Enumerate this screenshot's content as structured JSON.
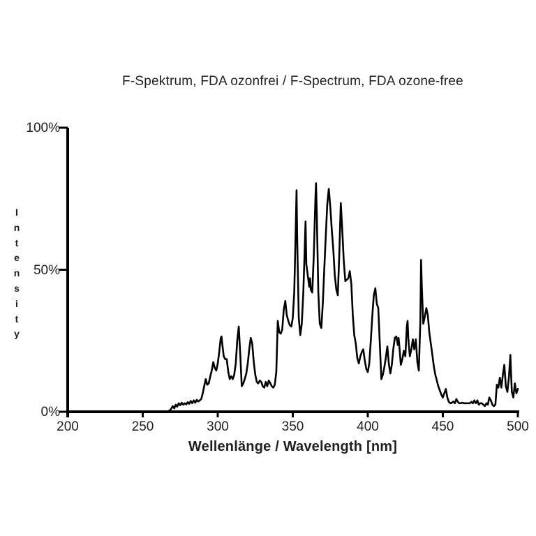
{
  "page": {
    "background": "#ffffff"
  },
  "chart_data": {
    "type": "line",
    "title": "F-Spektrum, FDA ozonfrei / F-Spectrum, FDA ozone-free",
    "xlabel": "Wellenlänge / Wavelength [nm]",
    "ylabel": "Intensity",
    "xlim": [
      200,
      500
    ],
    "ylim": [
      0,
      100
    ],
    "grid": false,
    "legend_position": "none",
    "line_color": "#000000",
    "axis_color": "#000000",
    "x_ticks": [
      {
        "value": 200,
        "label": "200"
      },
      {
        "value": 250,
        "label": "250"
      },
      {
        "value": 300,
        "label": "300"
      },
      {
        "value": 350,
        "label": "350"
      },
      {
        "value": 400,
        "label": "400"
      },
      {
        "value": 450,
        "label": "450"
      },
      {
        "value": 500,
        "label": "500"
      }
    ],
    "y_ticks": [
      {
        "value": 0,
        "label": "0%"
      },
      {
        "value": 50,
        "label": "50%"
      },
      {
        "value": 100,
        "label": "100%"
      }
    ],
    "series": [
      {
        "name": "F-Spectrum, FDA ozone-free",
        "points": [
          [
            200,
            0
          ],
          [
            210,
            0
          ],
          [
            220,
            0
          ],
          [
            230,
            0
          ],
          [
            240,
            0
          ],
          [
            250,
            0
          ],
          [
            260,
            0
          ],
          [
            266,
            0
          ],
          [
            268,
            0.5
          ],
          [
            269,
            1
          ],
          [
            270,
            2
          ],
          [
            271,
            1.2
          ],
          [
            272,
            2.5
          ],
          [
            273,
            1.8
          ],
          [
            274,
            3
          ],
          [
            275,
            2.3
          ],
          [
            276,
            3.2
          ],
          [
            277,
            2.5
          ],
          [
            278,
            3
          ],
          [
            279,
            2.6
          ],
          [
            280,
            3.4
          ],
          [
            281,
            2.8
          ],
          [
            282,
            3.8
          ],
          [
            283,
            3
          ],
          [
            284,
            4
          ],
          [
            285,
            3.2
          ],
          [
            286,
            4.2
          ],
          [
            287,
            3.6
          ],
          [
            288,
            4
          ],
          [
            289,
            4.5
          ],
          [
            290,
            6.5
          ],
          [
            291,
            9
          ],
          [
            292,
            11.5
          ],
          [
            293,
            9.5
          ],
          [
            294,
            10
          ],
          [
            295,
            12.5
          ],
          [
            296,
            14.5
          ],
          [
            297,
            17.5
          ],
          [
            298,
            15.5
          ],
          [
            299,
            14.5
          ],
          [
            300,
            17
          ],
          [
            301,
            21
          ],
          [
            302,
            26
          ],
          [
            302.5,
            26.5
          ],
          [
            303,
            24
          ],
          [
            304,
            19.5
          ],
          [
            305,
            18.5
          ],
          [
            306,
            18.5
          ],
          [
            307,
            14
          ],
          [
            308,
            11.5
          ],
          [
            309,
            12.5
          ],
          [
            310,
            11.5
          ],
          [
            311,
            13
          ],
          [
            312,
            17
          ],
          [
            313,
            25
          ],
          [
            314,
            30
          ],
          [
            315,
            20
          ],
          [
            316,
            9
          ],
          [
            317,
            10
          ],
          [
            318,
            11.5
          ],
          [
            319,
            13.5
          ],
          [
            320,
            17
          ],
          [
            321,
            22
          ],
          [
            322,
            26
          ],
          [
            323,
            24
          ],
          [
            324,
            17.5
          ],
          [
            325,
            13
          ],
          [
            326,
            10.5
          ],
          [
            327,
            10
          ],
          [
            328,
            11
          ],
          [
            329,
            10.5
          ],
          [
            330,
            9
          ],
          [
            331,
            8.5
          ],
          [
            332,
            10.5
          ],
          [
            333,
            9
          ],
          [
            334,
            11
          ],
          [
            335,
            10
          ],
          [
            336,
            9
          ],
          [
            337,
            8.5
          ],
          [
            338,
            9.5
          ],
          [
            339,
            14
          ],
          [
            340,
            32
          ],
          [
            341,
            28
          ],
          [
            342,
            27.5
          ],
          [
            343,
            29
          ],
          [
            344,
            36
          ],
          [
            345,
            39
          ],
          [
            346,
            34
          ],
          [
            347,
            32
          ],
          [
            348,
            30.5
          ],
          [
            349,
            30
          ],
          [
            350,
            33
          ],
          [
            351,
            42
          ],
          [
            352,
            65
          ],
          [
            352.5,
            78
          ],
          [
            353,
            60
          ],
          [
            354,
            33
          ],
          [
            355,
            27
          ],
          [
            356,
            31
          ],
          [
            357,
            42
          ],
          [
            358,
            58
          ],
          [
            358.5,
            67
          ],
          [
            359,
            52
          ],
          [
            360,
            48
          ],
          [
            361,
            44
          ],
          [
            361.5,
            47
          ],
          [
            362,
            43
          ],
          [
            363,
            42
          ],
          [
            364,
            55
          ],
          [
            365,
            74
          ],
          [
            365.5,
            80.5
          ],
          [
            366,
            70
          ],
          [
            367,
            42
          ],
          [
            368,
            31
          ],
          [
            369,
            29.5
          ],
          [
            370,
            38
          ],
          [
            371,
            50
          ],
          [
            372,
            62
          ],
          [
            373,
            73
          ],
          [
            374,
            78.5
          ],
          [
            375,
            72
          ],
          [
            376,
            64
          ],
          [
            377,
            57
          ],
          [
            378,
            48
          ],
          [
            379,
            43
          ],
          [
            380,
            41
          ],
          [
            381,
            55
          ],
          [
            382,
            73.5
          ],
          [
            383,
            64
          ],
          [
            384,
            53
          ],
          [
            385,
            46
          ],
          [
            386,
            46.5
          ],
          [
            387,
            47
          ],
          [
            388,
            49.5
          ],
          [
            389,
            45
          ],
          [
            390,
            34
          ],
          [
            391,
            27
          ],
          [
            392,
            24
          ],
          [
            393,
            19
          ],
          [
            394,
            17
          ],
          [
            395,
            19.5
          ],
          [
            396,
            21
          ],
          [
            397,
            22
          ],
          [
            398,
            18
          ],
          [
            399,
            15
          ],
          [
            400,
            14
          ],
          [
            401,
            17
          ],
          [
            402,
            25
          ],
          [
            403,
            34
          ],
          [
            404,
            41
          ],
          [
            405,
            43.5
          ],
          [
            406,
            38
          ],
          [
            407,
            36.5
          ],
          [
            408,
            24
          ],
          [
            409,
            11.5
          ],
          [
            410,
            13
          ],
          [
            411,
            15.5
          ],
          [
            412,
            19
          ],
          [
            413,
            23
          ],
          [
            414,
            17
          ],
          [
            415,
            13.5
          ],
          [
            416,
            16.5
          ],
          [
            417,
            22
          ],
          [
            418,
            26
          ],
          [
            419,
            26.5
          ],
          [
            420,
            23.5
          ],
          [
            420.5,
            26
          ],
          [
            421,
            23.5
          ],
          [
            422,
            16.5
          ],
          [
            423,
            18.5
          ],
          [
            424,
            21.5
          ],
          [
            425,
            19.5
          ],
          [
            426,
            30
          ],
          [
            426.5,
            32
          ],
          [
            427,
            26
          ],
          [
            428,
            19.5
          ],
          [
            429,
            22
          ],
          [
            430,
            25.5
          ],
          [
            431,
            22
          ],
          [
            432,
            25.5
          ],
          [
            433,
            17.5
          ],
          [
            434,
            14.5
          ],
          [
            435,
            32
          ],
          [
            435.5,
            53.5
          ],
          [
            436,
            44
          ],
          [
            436.5,
            37
          ],
          [
            437,
            31
          ],
          [
            438,
            33.5
          ],
          [
            439,
            36.5
          ],
          [
            440,
            34
          ],
          [
            441,
            28
          ],
          [
            442,
            24
          ],
          [
            443,
            20
          ],
          [
            444,
            16
          ],
          [
            445,
            13
          ],
          [
            446,
            11
          ],
          [
            447,
            9
          ],
          [
            448,
            7.5
          ],
          [
            449,
            6
          ],
          [
            450,
            5
          ],
          [
            451,
            6.5
          ],
          [
            452,
            8
          ],
          [
            453,
            5
          ],
          [
            454,
            3.5
          ],
          [
            455,
            3
          ],
          [
            456,
            3.2
          ],
          [
            457,
            3.6
          ],
          [
            458,
            3
          ],
          [
            459,
            4.5
          ],
          [
            460,
            3.5
          ],
          [
            461,
            3
          ],
          [
            462,
            3
          ],
          [
            463,
            3.2
          ],
          [
            464,
            3
          ],
          [
            465,
            3
          ],
          [
            466,
            3
          ],
          [
            467,
            3
          ],
          [
            468,
            3
          ],
          [
            469,
            3.5
          ],
          [
            470,
            3
          ],
          [
            471,
            4
          ],
          [
            472,
            3
          ],
          [
            473,
            4
          ],
          [
            474,
            2.5
          ],
          [
            475,
            3
          ],
          [
            476,
            3
          ],
          [
            477,
            2.5
          ],
          [
            478,
            2
          ],
          [
            479,
            3
          ],
          [
            480,
            2.5
          ],
          [
            481,
            5
          ],
          [
            482,
            4
          ],
          [
            483,
            2.5
          ],
          [
            484,
            2
          ],
          [
            485,
            2.5
          ],
          [
            486,
            9.5
          ],
          [
            487,
            8.5
          ],
          [
            488,
            12
          ],
          [
            489,
            8.5
          ],
          [
            490,
            13
          ],
          [
            491,
            16.5
          ],
          [
            492,
            9
          ],
          [
            493,
            7
          ],
          [
            494,
            12
          ],
          [
            495,
            20
          ],
          [
            495.5,
            13
          ],
          [
            496,
            7
          ],
          [
            497,
            5
          ],
          [
            498,
            10
          ],
          [
            499,
            6.5
          ],
          [
            500,
            8
          ]
        ]
      }
    ]
  }
}
